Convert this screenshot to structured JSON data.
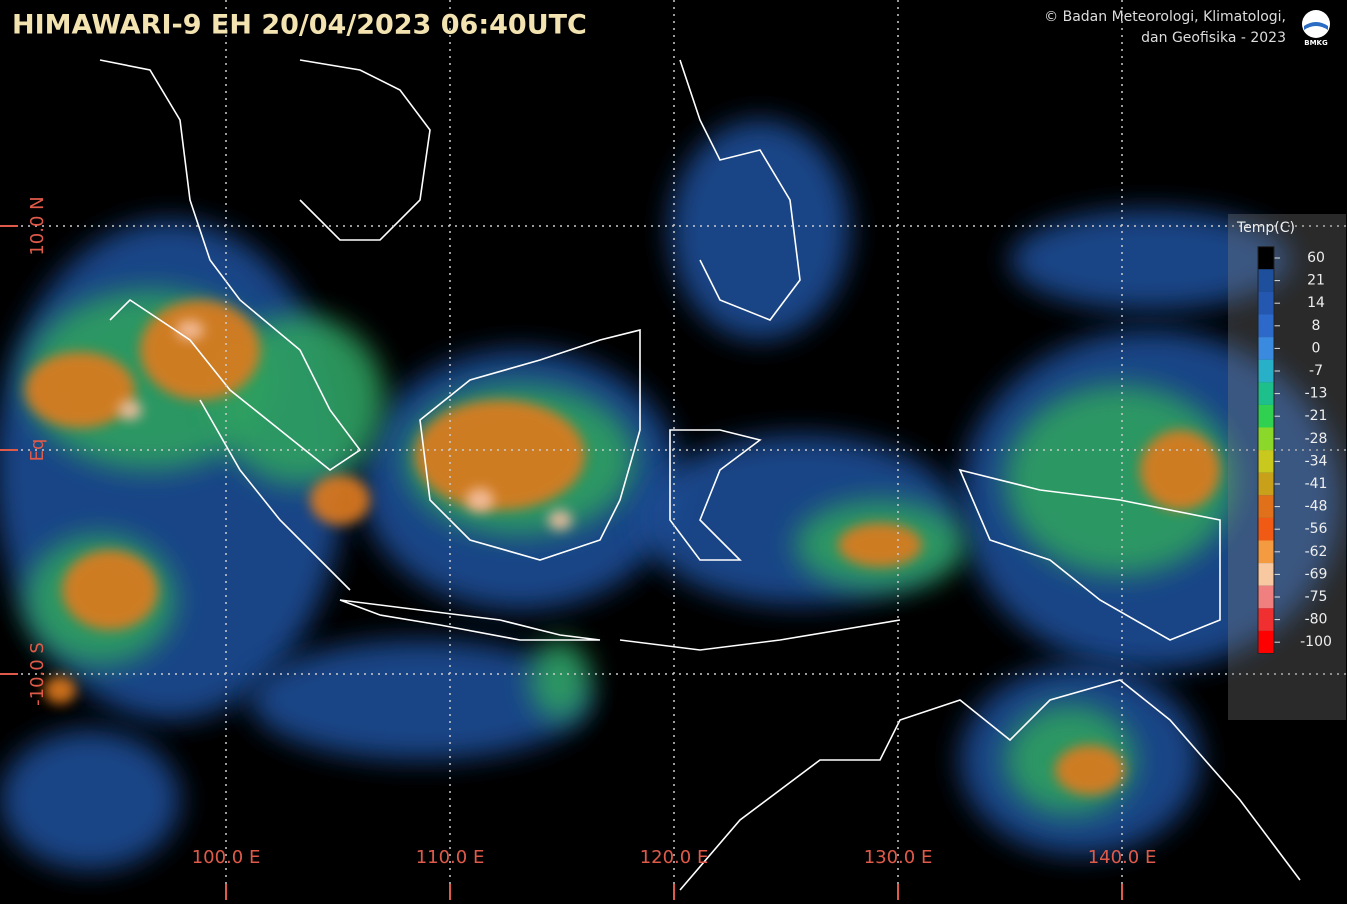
{
  "header": {
    "title": "HIMAWARI-9 EH  20/04/2023  06:40UTC",
    "copyright_line1": "© Badan Meteorologi, Klimatologi,",
    "copyright_line2": "dan Geofisika -  2023",
    "logo_text": "BMKG"
  },
  "latitude_labels": [
    "10.0 N",
    "Eq",
    "-10.0 S"
  ],
  "longitude_labels": [
    "100.0 E",
    "110.0 E",
    "120.0 E",
    "130.0 E",
    "140.0 E"
  ],
  "colorbar": {
    "title": "Temp(C)",
    "items": [
      {
        "label": "60",
        "color": "#000000"
      },
      {
        "label": "21",
        "color": "#1d4f9c"
      },
      {
        "label": "14",
        "color": "#2458b0"
      },
      {
        "label": "8",
        "color": "#2c69c8"
      },
      {
        "label": "0",
        "color": "#3a8be0"
      },
      {
        "label": "-7",
        "color": "#28b0c8"
      },
      {
        "label": "-13",
        "color": "#1dc08a"
      },
      {
        "label": "-21",
        "color": "#30d050"
      },
      {
        "label": "-28",
        "color": "#8cd82a"
      },
      {
        "label": "-34",
        "color": "#c8c81e"
      },
      {
        "label": "-41",
        "color": "#c8a01a"
      },
      {
        "label": "-48",
        "color": "#e0701a"
      },
      {
        "label": "-56",
        "color": "#f05a14"
      },
      {
        "label": "-62",
        "color": "#f49a40"
      },
      {
        "label": "-69",
        "color": "#f8c8a0"
      },
      {
        "label": "-75",
        "color": "#f08080"
      },
      {
        "label": "-80",
        "color": "#f03030"
      },
      {
        "label": "-100",
        "color": "#ff0000"
      }
    ]
  }
}
